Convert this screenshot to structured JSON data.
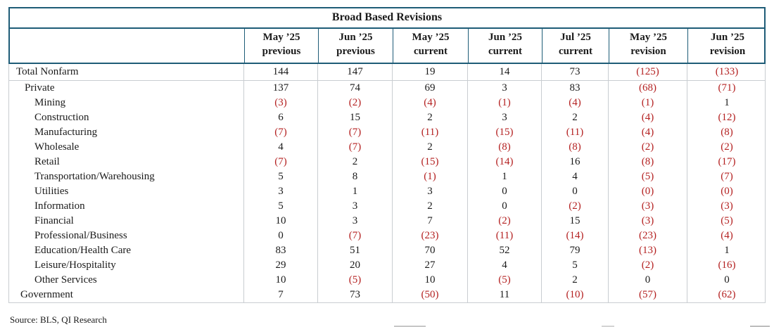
{
  "source_note": "Source: BLS, QI Research",
  "colors": {
    "accent_teal": "#1E5C77",
    "negative_red": "#B42121",
    "grid_gray": "#C9CDD1",
    "text": "#1a1a1a"
  },
  "chart_data": {
    "type": "table",
    "title": "Broad Based Revisions",
    "columns": [
      {
        "line1": "May ’25",
        "line2": "previous"
      },
      {
        "line1": "Jun ’25",
        "line2": "previous"
      },
      {
        "line1": "May ’25",
        "line2": "current"
      },
      {
        "line1": "Jun ’25",
        "line2": "current"
      },
      {
        "line1": "Jul ’25",
        "line2": "current"
      },
      {
        "line1": "May ’25",
        "line2": "revision"
      },
      {
        "line1": "Jun ’25",
        "line2": "revision"
      }
    ],
    "negative_format": "parentheses shown in red",
    "rows": [
      {
        "label": "Total Nonfarm",
        "indent": 0,
        "total": true,
        "values": [
          "144",
          "147",
          "19",
          "14",
          "73",
          "(125)",
          "(133)"
        ]
      },
      {
        "label": "Private",
        "indent": 1,
        "values": [
          "137",
          "74",
          "69",
          "3",
          "83",
          "(68)",
          "(71)"
        ]
      },
      {
        "label": "Mining",
        "indent": 2,
        "values": [
          "(3)",
          "(2)",
          "(4)",
          "(1)",
          "(4)",
          "(1)",
          "1"
        ]
      },
      {
        "label": "Construction",
        "indent": 2,
        "values": [
          "6",
          "15",
          "2",
          "3",
          "2",
          "(4)",
          "(12)"
        ]
      },
      {
        "label": "Manufacturing",
        "indent": 2,
        "values": [
          "(7)",
          "(7)",
          "(11)",
          "(15)",
          "(11)",
          "(4)",
          "(8)"
        ]
      },
      {
        "label": "Wholesale",
        "indent": 2,
        "values": [
          "4",
          "(7)",
          "2",
          "(8)",
          "(8)",
          "(2)",
          "(2)"
        ]
      },
      {
        "label": "Retail",
        "indent": 2,
        "values": [
          "(7)",
          "2",
          "(15)",
          "(14)",
          "16",
          "(8)",
          "(17)"
        ]
      },
      {
        "label": "Transportation/Warehousing",
        "indent": 2,
        "values": [
          "5",
          "8",
          "(1)",
          "1",
          "4",
          "(5)",
          "(7)"
        ]
      },
      {
        "label": "Utilities",
        "indent": 2,
        "values": [
          "3",
          "1",
          "3",
          "0",
          "0",
          "(0)",
          "(0)"
        ]
      },
      {
        "label": "Information",
        "indent": 2,
        "values": [
          "5",
          "3",
          "2",
          "0",
          "(2)",
          "(3)",
          "(3)"
        ]
      },
      {
        "label": "Financial",
        "indent": 2,
        "values": [
          "10",
          "3",
          "7",
          "(2)",
          "15",
          "(3)",
          "(5)"
        ]
      },
      {
        "label": "Professional/Business",
        "indent": 2,
        "values": [
          "0",
          "(7)",
          "(23)",
          "(11)",
          "(14)",
          "(23)",
          "(4)"
        ]
      },
      {
        "label": "Education/Health Care",
        "indent": 2,
        "values": [
          "83",
          "51",
          "70",
          "52",
          "79",
          "(13)",
          "1"
        ]
      },
      {
        "label": "Leisure/Hospitality",
        "indent": 2,
        "values": [
          "29",
          "20",
          "27",
          "4",
          "5",
          "(2)",
          "(16)"
        ]
      },
      {
        "label": "Other Services",
        "indent": 2,
        "values": [
          "10",
          "(5)",
          "10",
          "(5)",
          "2",
          "0",
          "0"
        ]
      },
      {
        "label": "Government",
        "indent": 0.5,
        "values": [
          "7",
          "73",
          "(50)",
          "11",
          "(10)",
          "(57)",
          "(62)"
        ]
      }
    ]
  }
}
